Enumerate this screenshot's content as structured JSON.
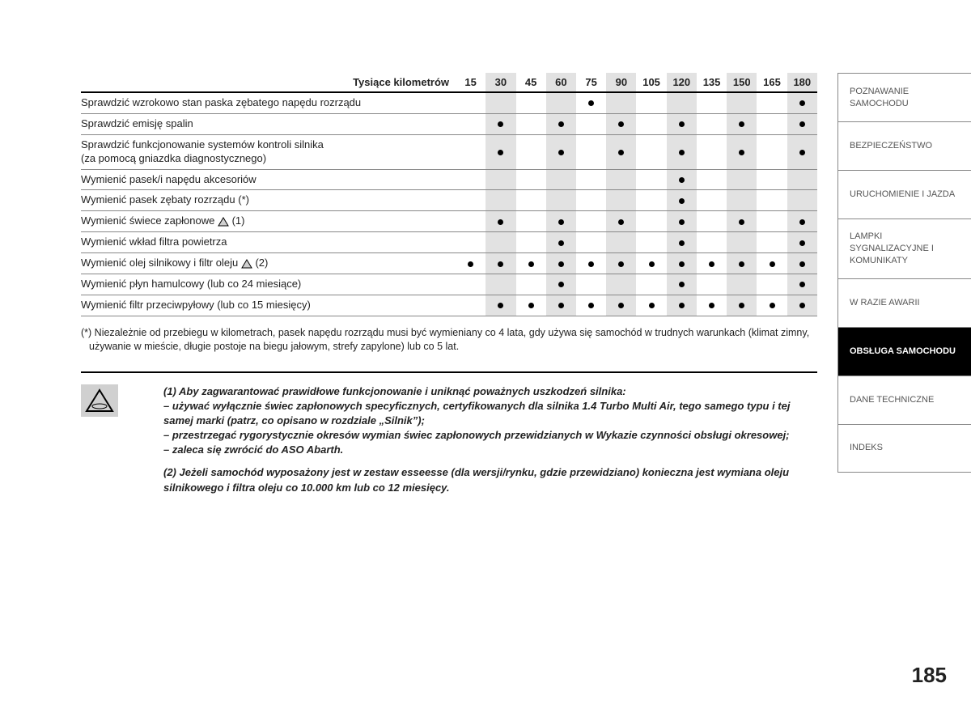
{
  "table": {
    "header_label": "Tysiące kilometrów",
    "km_columns": [
      "15",
      "30",
      "45",
      "60",
      "75",
      "90",
      "105",
      "120",
      "135",
      "150",
      "165",
      "180"
    ],
    "gray_col_indices": [
      1,
      3,
      5,
      7,
      9,
      11
    ],
    "rows": [
      {
        "label": "Sprawdzić wzrokowo stan paska zębatego napędu rozrządu",
        "icon": false,
        "suffix": "",
        "marks": [
          0,
          0,
          0,
          0,
          1,
          0,
          0,
          0,
          0,
          0,
          0,
          1
        ]
      },
      {
        "label": "Sprawdzić emisję spalin",
        "icon": false,
        "suffix": "",
        "marks": [
          0,
          1,
          0,
          1,
          0,
          1,
          0,
          1,
          0,
          1,
          0,
          1
        ]
      },
      {
        "label": "Sprawdzić funkcjonowanie systemów kontroli silnika<br>(za pomocą gniazdka diagnostycznego)",
        "icon": false,
        "suffix": "",
        "marks": [
          0,
          1,
          0,
          1,
          0,
          1,
          0,
          1,
          0,
          1,
          0,
          1
        ]
      },
      {
        "label": "Wymienić pasek/i napędu akcesoriów",
        "icon": false,
        "suffix": "",
        "marks": [
          0,
          0,
          0,
          0,
          0,
          0,
          0,
          1,
          0,
          0,
          0,
          0
        ]
      },
      {
        "label": "Wymienić pasek zębaty rozrządu (*)",
        "icon": false,
        "suffix": "",
        "marks": [
          0,
          0,
          0,
          0,
          0,
          0,
          0,
          1,
          0,
          0,
          0,
          0
        ]
      },
      {
        "label": "Wymienić świece zapłonowe",
        "icon": true,
        "suffix": "(1)",
        "marks": [
          0,
          1,
          0,
          1,
          0,
          1,
          0,
          1,
          0,
          1,
          0,
          1
        ]
      },
      {
        "label": "Wymienić wkład filtra powietrza",
        "icon": false,
        "suffix": "",
        "marks": [
          0,
          0,
          0,
          1,
          0,
          0,
          0,
          1,
          0,
          0,
          0,
          1
        ]
      },
      {
        "label": "Wymienić olej silnikowy i filtr oleju",
        "icon": true,
        "suffix": "(2)",
        "marks": [
          1,
          1,
          1,
          1,
          1,
          1,
          1,
          1,
          1,
          1,
          1,
          1
        ]
      },
      {
        "label": "Wymienić płyn hamulcowy (lub co 24 miesiące)",
        "icon": false,
        "suffix": "",
        "marks": [
          0,
          0,
          0,
          1,
          0,
          0,
          0,
          1,
          0,
          0,
          0,
          1
        ]
      },
      {
        "label": "Wymienić filtr przeciwpyłowy (lub co 15 miesięcy)",
        "icon": false,
        "suffix": "",
        "marks": [
          0,
          1,
          1,
          1,
          1,
          1,
          1,
          1,
          1,
          1,
          1,
          1
        ]
      }
    ]
  },
  "footnote_star": "(*) Niezależnie od przebiegu w kilometrach, pasek napędu rozrządu musi być wymieniany co 4 lata, gdy używa się samochód w trudnych warunkach (klimat zimny, używanie w mieście, długie postoje na biegu jałowym, strefy zapylone) lub co 5 lat.",
  "warning": {
    "note1_intro": "(1) Aby zagwarantować prawidłowe funkcjonowanie i uniknąć poważnych uszkodzeń silnika:",
    "note1_b1": "– używać wyłącznie świec zapłonowych specyficznych, certyfikowanych dla silnika 1.4 Turbo Multi Air, tego samego typu i tej samej marki (patrz, co opisano w rozdziale „Silnik”);",
    "note1_b2": "– przestrzegać rygorystycznie okresów wymian świec zapłonowych przewidzianych w Wykazie czynności obsługi okresowej;",
    "note1_b3": "– zaleca się zwrócić do ASO Abarth.",
    "note2": "(2) Jeżeli samochód wyposażony jest w zestaw esseesse (dla wersji/rynku, gdzie przewidziano) konieczna jest wymiana oleju silnikowego i filtra oleju co 10.000 km lub co 12 miesięcy."
  },
  "tabs": [
    {
      "label": "POZNAWANIE SAMOCHODU",
      "active": false
    },
    {
      "label": "BEZPIECZEŃSTWO",
      "active": false
    },
    {
      "label": "URUCHOMIENIE I JAZDA",
      "active": false
    },
    {
      "label": "LAMPKI SYGNALIZACYJNE I KOMUNIKATY",
      "active": false
    },
    {
      "label": "W RAZIE AWARII",
      "active": false
    },
    {
      "label": "OBSŁUGA SAMOCHODU",
      "active": true
    },
    {
      "label": "DANE TECHNICZNE",
      "active": false
    },
    {
      "label": "INDEKS",
      "active": false
    }
  ],
  "page_number": "185"
}
